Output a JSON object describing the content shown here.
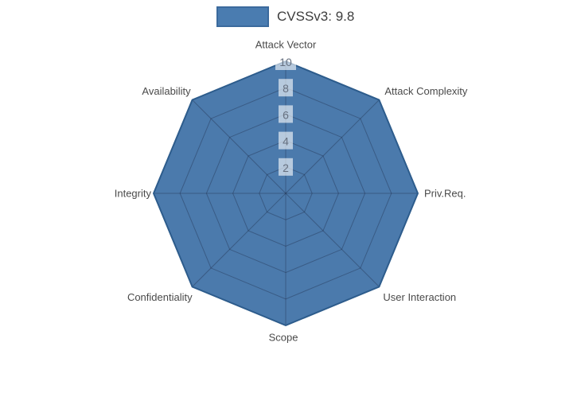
{
  "legend": {
    "label": "CVSSv3: 9.8",
    "swatch_fill": "#4a7cb0",
    "swatch_border": "#3b6a9d",
    "text_color": "#3d3d3d"
  },
  "chart_data": {
    "type": "radar",
    "categories": [
      "Attack Vector",
      "Attack Complexity",
      "Priv.Req.",
      "User Interaction",
      "Scope",
      "Confidentiality",
      "Integrity",
      "Availability"
    ],
    "series": [
      {
        "name": "CVSSv3: 9.8",
        "values": [
          10,
          10,
          10,
          10,
          10,
          10,
          10,
          10
        ],
        "fill_color": "#4b7aac",
        "line_color": "#2d5c8c"
      }
    ],
    "radial_axis": {
      "min": 0,
      "max": 10,
      "ticks": [
        "2",
        "4",
        "6",
        "8",
        "10"
      ]
    },
    "grid": true,
    "legend_position": "top-center",
    "colors": {
      "grid_line": "rgba(25,35,60,0.35)",
      "tick_text": "#667080",
      "tick_box": "rgba(255,255,255,0.6)",
      "axis_label": "#4a4a4a"
    }
  }
}
